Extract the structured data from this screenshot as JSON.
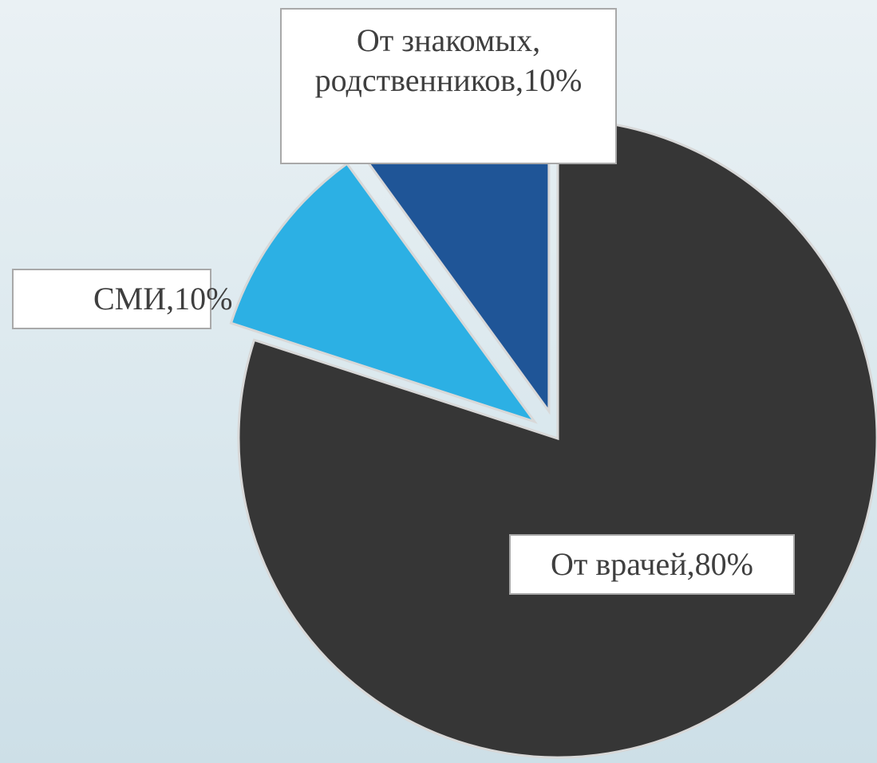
{
  "chart_data": {
    "type": "pie",
    "values": [
      80,
      10,
      10
    ],
    "value_labels": [
      "От врачей,80%",
      "СМИ,10%",
      "От знакомых, родственников,10%"
    ],
    "colors": [
      "#363636",
      "#2cb0e4",
      "#1f5597"
    ]
  }
}
